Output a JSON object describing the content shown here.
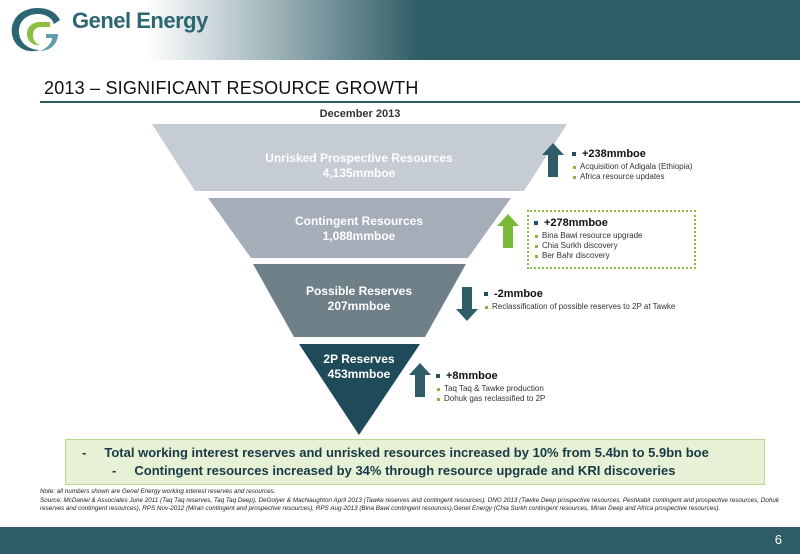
{
  "header": {
    "brand": "Genel Energy",
    "title": "2013 – SIGNIFICANT RESOURCE GROWTH",
    "subtitle": "December 2013"
  },
  "funnel": [
    {
      "name": "Unrisked Prospective Resources",
      "value": "4,135mmboe",
      "color": "#c5ccd3"
    },
    {
      "name": "Contingent Resources",
      "value": "1,088mmboe",
      "color": "#a5adb8"
    },
    {
      "name": "Possible Reserves",
      "value": "207mmboe",
      "color": "#6f8089"
    },
    {
      "name": "2P Reserves",
      "value": "453mmboe",
      "color": "#1e4a59"
    }
  ],
  "annotations": [
    {
      "direction": "up",
      "arrow_color": "#2f5d67",
      "change": "+238mmboe",
      "bullets": [
        "Acquisition of Adigala (Ethiopia)",
        "Africa resource updates"
      ]
    },
    {
      "direction": "up",
      "arrow_color": "#7ab83a",
      "change": "+278mmboe",
      "bullets": [
        "Bina Bawi resource upgrade",
        "Chia Surkh discovery",
        "Ber Bahr discovery"
      ]
    },
    {
      "direction": "down",
      "arrow_color": "#2f5d67",
      "change": "-2mmboe",
      "bullets": [
        "Reclassification of possible reserves to 2P at Tawke"
      ]
    },
    {
      "direction": "up",
      "arrow_color": "#2f5d67",
      "change": "+8mmboe",
      "bullets": [
        "Taq Taq & Tawke production",
        "Dohuk gas reclassified to 2P"
      ]
    }
  ],
  "callout": [
    "-     Total working interest reserves and unrisked resources increased by 10% from 5.4bn to 5.9bn boe",
    "-     Contingent resources increased by 34% through resource upgrade and KRI discoveries"
  ],
  "notes": {
    "line1": "Note: all numbers shown are Genel Energy working interest reserves and resources.",
    "line2": "Source:  McDaniel  & Associates June 2011 (Taq Taq reserves, Taq Taq Deep), DeGolyer & MacNaughton April 2013 (Tawke reserves and contingent resources), DNO 2013 (Tawke Deep prospective resources, Peshkabir contingent and prospective resources, Dohuk reserves and contingent resources), RPS Nov-2012 (Miran contingent and prospective resources), RPS Aug-2013 (Bina Bawi contingent resources),Genel Energy (Chia Surkh contingent resources, Miran Deep and Africa prospective resources)."
  },
  "footer": {
    "page_number": "6"
  }
}
